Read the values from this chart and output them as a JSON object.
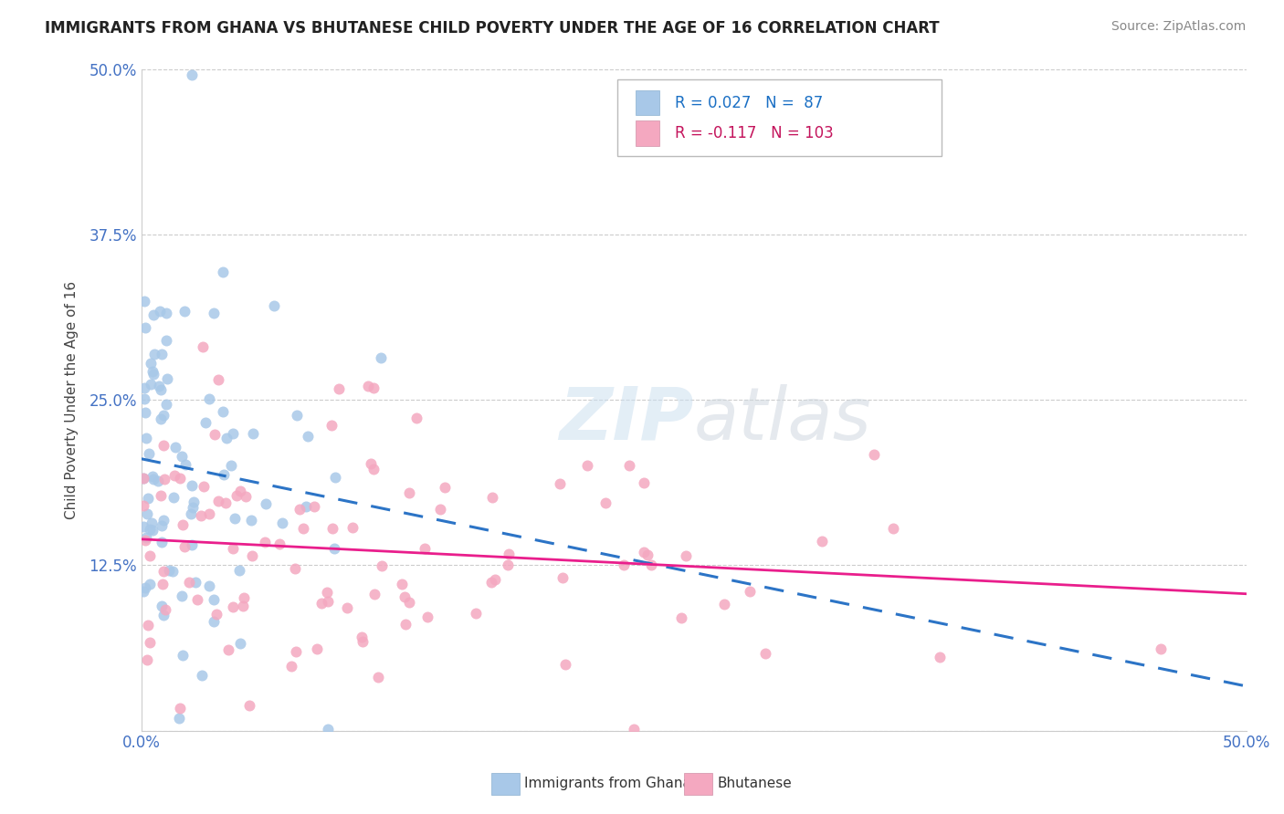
{
  "title": "IMMIGRANTS FROM GHANA VS BHUTANESE CHILD POVERTY UNDER THE AGE OF 16 CORRELATION CHART",
  "source": "Source: ZipAtlas.com",
  "ylabel": "Child Poverty Under the Age of 16",
  "xlim": [
    0.0,
    0.5
  ],
  "ylim": [
    0.0,
    0.5
  ],
  "ghana_R": "0.027",
  "ghana_N": "87",
  "bhutan_R": "-0.117",
  "bhutan_N": "103",
  "ghana_color": "#a8c8e8",
  "bhutan_color": "#f4a8c0",
  "ghana_line_color": "#1565c0",
  "bhutan_line_color": "#e91e8c",
  "ghana_line_style": "dashed",
  "bhutan_line_style": "solid",
  "legend_label_ghana": "Immigrants from Ghana",
  "legend_label_bhutan": "Bhutanese",
  "watermark_zip": "ZIP",
  "watermark_atlas": "atlas",
  "title_fontsize": 12,
  "source_fontsize": 10,
  "tick_fontsize": 12,
  "ylabel_fontsize": 11,
  "legend_fontsize": 12
}
